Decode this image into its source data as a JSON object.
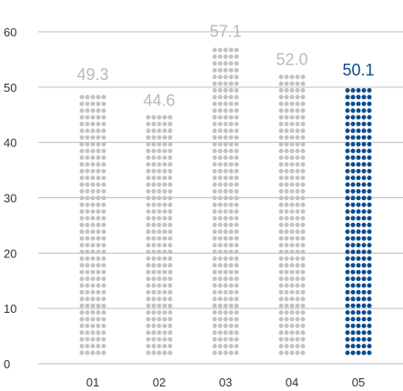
{
  "chart_data": {
    "type": "bar",
    "title": "",
    "xlabel": "",
    "ylabel": "",
    "categories": [
      "01",
      "02",
      "03",
      "04",
      "05"
    ],
    "values": [
      49.3,
      44.6,
      57.1,
      52.0,
      50.1
    ],
    "value_labels": [
      "49.3",
      "44.6",
      "57.1",
      "52.0",
      "50.1"
    ],
    "highlight_index": 4,
    "ylim": [
      0,
      60
    ],
    "yticks": [
      0,
      10,
      20,
      30,
      40,
      50,
      60
    ],
    "grid": true,
    "legend": "none",
    "mark_style": "dotted-columns",
    "colors": {
      "default": "#c3c3c3",
      "highlight": "#0d4c8e",
      "default_label": "#b9b9b9",
      "highlight_label": "#0d4c8e",
      "grid": "#bdbdbd",
      "axis_text": "#333333"
    }
  }
}
